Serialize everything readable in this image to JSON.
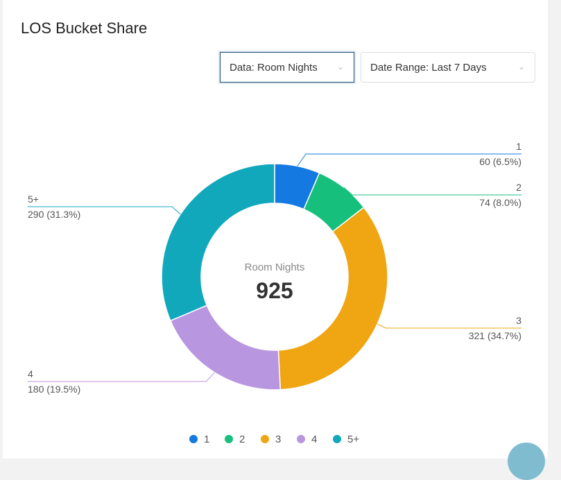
{
  "card": {
    "title": "LOS Bucket Share"
  },
  "filters": {
    "data_label": "Data: Room Nights",
    "date_label": "Date Range: Last 7 Days"
  },
  "chart_data": {
    "type": "pie",
    "subtype": "donut",
    "center_label": "Room Nights",
    "center_value": "925",
    "categories": [
      "1",
      "2",
      "3",
      "4",
      "5+"
    ],
    "values": [
      60,
      74,
      321,
      180,
      290
    ],
    "labels": [
      "60 (6.5%)",
      "74 (8.0%)",
      "321 (34.7%)",
      "180 (19.5%)",
      "290 (31.3%)"
    ],
    "colors": [
      "#1479e0",
      "#16c07c",
      "#f0a512",
      "#b996e0",
      "#12a8bc"
    ],
    "legend": "bottom"
  }
}
